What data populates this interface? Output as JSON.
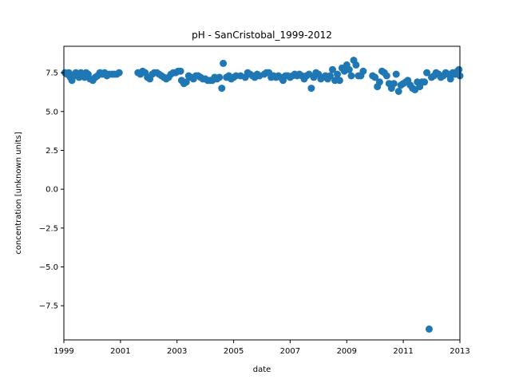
{
  "chart_data": {
    "type": "scatter",
    "title": "pH - SanCristobal_1999-2012",
    "xlabel": "date",
    "ylabel": "concentration [unknown units]",
    "xlim": [
      "1999-01-01",
      "2013-01-01"
    ],
    "ylim": [
      -9.7,
      9.2
    ],
    "x_ticks": [
      "1999",
      "2001",
      "2003",
      "2005",
      "2007",
      "2009",
      "2011",
      "2013"
    ],
    "y_ticks": [
      7.5,
      5.0,
      2.5,
      0.0,
      -2.5,
      -5.0,
      -7.5
    ],
    "y_tick_labels": [
      "7.5",
      "5.0",
      "2.5",
      "0.0",
      "−2.5",
      "−5.0",
      "−7.5"
    ],
    "grid": false,
    "legend": "none",
    "marker_color": "#1f77b4",
    "series": [
      {
        "values": [
          [
            "1999-01-15",
            7.5
          ],
          [
            "1999-02-10",
            7.4
          ],
          [
            "1999-03-05",
            7.5
          ],
          [
            "1999-03-25",
            7.2
          ],
          [
            "1999-04-15",
            7.0
          ],
          [
            "1999-05-10",
            7.3
          ],
          [
            "1999-06-05",
            7.5
          ],
          [
            "1999-06-25",
            7.4
          ],
          [
            "1999-07-15",
            7.2
          ],
          [
            "1999-08-10",
            7.5
          ],
          [
            "1999-09-05",
            7.3
          ],
          [
            "1999-09-25",
            7.2
          ],
          [
            "1999-10-15",
            7.5
          ],
          [
            "1999-11-10",
            7.4
          ],
          [
            "1999-12-05",
            7.1
          ],
          [
            "2000-01-10",
            7.0
          ],
          [
            "2000-02-10",
            7.2
          ],
          [
            "2000-03-10",
            7.3
          ],
          [
            "2000-04-10",
            7.5
          ],
          [
            "2000-05-10",
            7.4
          ],
          [
            "2000-06-10",
            7.5
          ],
          [
            "2000-07-10",
            7.3
          ],
          [
            "2000-08-10",
            7.4
          ],
          [
            "2000-09-15",
            7.4
          ],
          [
            "2000-10-15",
            7.4
          ],
          [
            "2000-11-15",
            7.4
          ],
          [
            "2000-12-15",
            7.5
          ],
          [
            "2001-08-15",
            7.5
          ],
          [
            "2001-09-15",
            7.4
          ],
          [
            "2001-10-15",
            7.6
          ],
          [
            "2001-11-15",
            7.5
          ],
          [
            "2001-12-15",
            7.2
          ],
          [
            "2002-01-15",
            7.1
          ],
          [
            "2002-02-15",
            7.4
          ],
          [
            "2002-03-15",
            7.5
          ],
          [
            "2002-04-15",
            7.5
          ],
          [
            "2002-05-15",
            7.4
          ],
          [
            "2002-06-15",
            7.3
          ],
          [
            "2002-07-15",
            7.2
          ],
          [
            "2002-08-15",
            7.1
          ],
          [
            "2002-09-15",
            7.2
          ],
          [
            "2002-10-15",
            7.4
          ],
          [
            "2002-11-15",
            7.5
          ],
          [
            "2002-12-15",
            7.5
          ],
          [
            "2003-01-15",
            7.6
          ],
          [
            "2003-02-15",
            7.6
          ],
          [
            "2003-03-01",
            7.0
          ],
          [
            "2003-04-01",
            6.8
          ],
          [
            "2003-05-01",
            6.9
          ],
          [
            "2003-06-01",
            7.3
          ],
          [
            "2003-07-01",
            7.2
          ],
          [
            "2003-08-01",
            7.1
          ],
          [
            "2003-09-01",
            7.3
          ],
          [
            "2003-10-01",
            7.3
          ],
          [
            "2003-11-01",
            7.2
          ],
          [
            "2003-12-01",
            7.1
          ],
          [
            "2004-01-01",
            7.1
          ],
          [
            "2004-02-01",
            7.0
          ],
          [
            "2004-03-01",
            7.0
          ],
          [
            "2004-04-01",
            7.0
          ],
          [
            "2004-05-01",
            7.2
          ],
          [
            "2004-06-01",
            7.1
          ],
          [
            "2004-07-01",
            7.2
          ],
          [
            "2004-08-01",
            6.5
          ],
          [
            "2004-08-20",
            8.1
          ],
          [
            "2004-10-01",
            7.2
          ],
          [
            "2004-11-01",
            7.3
          ],
          [
            "2004-12-01",
            7.1
          ],
          [
            "2005-01-01",
            7.2
          ],
          [
            "2005-02-01",
            7.3
          ],
          [
            "2005-04-01",
            7.3
          ],
          [
            "2005-06-01",
            7.2
          ],
          [
            "2005-07-01",
            7.5
          ],
          [
            "2005-08-01",
            7.4
          ],
          [
            "2005-09-01",
            7.3
          ],
          [
            "2005-10-01",
            7.2
          ],
          [
            "2005-11-01",
            7.4
          ],
          [
            "2005-12-01",
            7.3
          ],
          [
            "2006-02-01",
            7.4
          ],
          [
            "2006-03-01",
            7.5
          ],
          [
            "2006-04-01",
            7.5
          ],
          [
            "2006-05-01",
            7.2
          ],
          [
            "2006-06-01",
            7.3
          ],
          [
            "2006-07-01",
            7.2
          ],
          [
            "2006-08-01",
            7.3
          ],
          [
            "2006-09-01",
            7.2
          ],
          [
            "2006-10-01",
            7.0
          ],
          [
            "2006-11-01",
            7.3
          ],
          [
            "2006-12-01",
            7.3
          ],
          [
            "2007-01-01",
            7.2
          ],
          [
            "2007-02-01",
            7.3
          ],
          [
            "2007-03-01",
            7.4
          ],
          [
            "2007-04-01",
            7.3
          ],
          [
            "2007-05-01",
            7.4
          ],
          [
            "2007-06-01",
            7.3
          ],
          [
            "2007-07-01",
            7.1
          ],
          [
            "2007-08-01",
            7.3
          ],
          [
            "2007-09-01",
            7.4
          ],
          [
            "2007-10-01",
            6.5
          ],
          [
            "2007-11-01",
            7.2
          ],
          [
            "2007-12-01",
            7.5
          ],
          [
            "2008-01-01",
            7.4
          ],
          [
            "2008-02-01",
            7.1
          ],
          [
            "2008-03-01",
            7.2
          ],
          [
            "2008-04-01",
            7.3
          ],
          [
            "2008-05-01",
            7.1
          ],
          [
            "2008-06-01",
            7.3
          ],
          [
            "2008-07-01",
            7.7
          ],
          [
            "2008-08-01",
            7.0
          ],
          [
            "2008-09-01",
            7.4
          ],
          [
            "2008-10-01",
            7.0
          ],
          [
            "2008-11-01",
            7.8
          ],
          [
            "2008-12-01",
            7.6
          ],
          [
            "2009-01-01",
            8.0
          ],
          [
            "2009-02-01",
            7.7
          ],
          [
            "2009-03-01",
            7.3
          ],
          [
            "2009-04-01",
            8.3
          ],
          [
            "2009-05-01",
            8.0
          ],
          [
            "2009-06-01",
            7.3
          ],
          [
            "2009-07-01",
            7.3
          ],
          [
            "2009-08-01",
            7.6
          ],
          [
            "2009-12-01",
            7.3
          ],
          [
            "2010-01-01",
            7.2
          ],
          [
            "2010-02-01",
            6.6
          ],
          [
            "2010-03-01",
            6.9
          ],
          [
            "2010-04-01",
            7.6
          ],
          [
            "2010-05-01",
            7.5
          ],
          [
            "2010-06-01",
            7.3
          ],
          [
            "2010-07-01",
            6.8
          ],
          [
            "2010-08-01",
            6.5
          ],
          [
            "2010-09-01",
            6.8
          ],
          [
            "2010-10-01",
            7.4
          ],
          [
            "2010-11-01",
            6.3
          ],
          [
            "2010-12-01",
            6.7
          ],
          [
            "2011-01-01",
            6.8
          ],
          [
            "2011-02-01",
            6.9
          ],
          [
            "2011-03-01",
            7.0
          ],
          [
            "2011-04-01",
            6.7
          ],
          [
            "2011-05-01",
            6.5
          ],
          [
            "2011-06-01",
            6.4
          ],
          [
            "2011-07-01",
            6.9
          ],
          [
            "2011-08-01",
            6.6
          ],
          [
            "2011-09-01",
            6.9
          ],
          [
            "2011-10-01",
            6.9
          ],
          [
            "2011-11-01",
            7.5
          ],
          [
            "2011-12-01",
            -9.0
          ],
          [
            "2012-01-01",
            7.2
          ],
          [
            "2012-02-01",
            7.3
          ],
          [
            "2012-03-01",
            7.5
          ],
          [
            "2012-04-01",
            7.4
          ],
          [
            "2012-05-01",
            7.2
          ],
          [
            "2012-06-01",
            7.3
          ],
          [
            "2012-07-01",
            7.5
          ],
          [
            "2012-08-01",
            7.4
          ],
          [
            "2012-09-01",
            7.1
          ],
          [
            "2012-10-01",
            7.5
          ],
          [
            "2012-11-01",
            7.4
          ],
          [
            "2012-12-01",
            7.6
          ],
          [
            "2012-12-20",
            7.7
          ],
          [
            "2013-01-01",
            7.3
          ]
        ]
      }
    ]
  }
}
